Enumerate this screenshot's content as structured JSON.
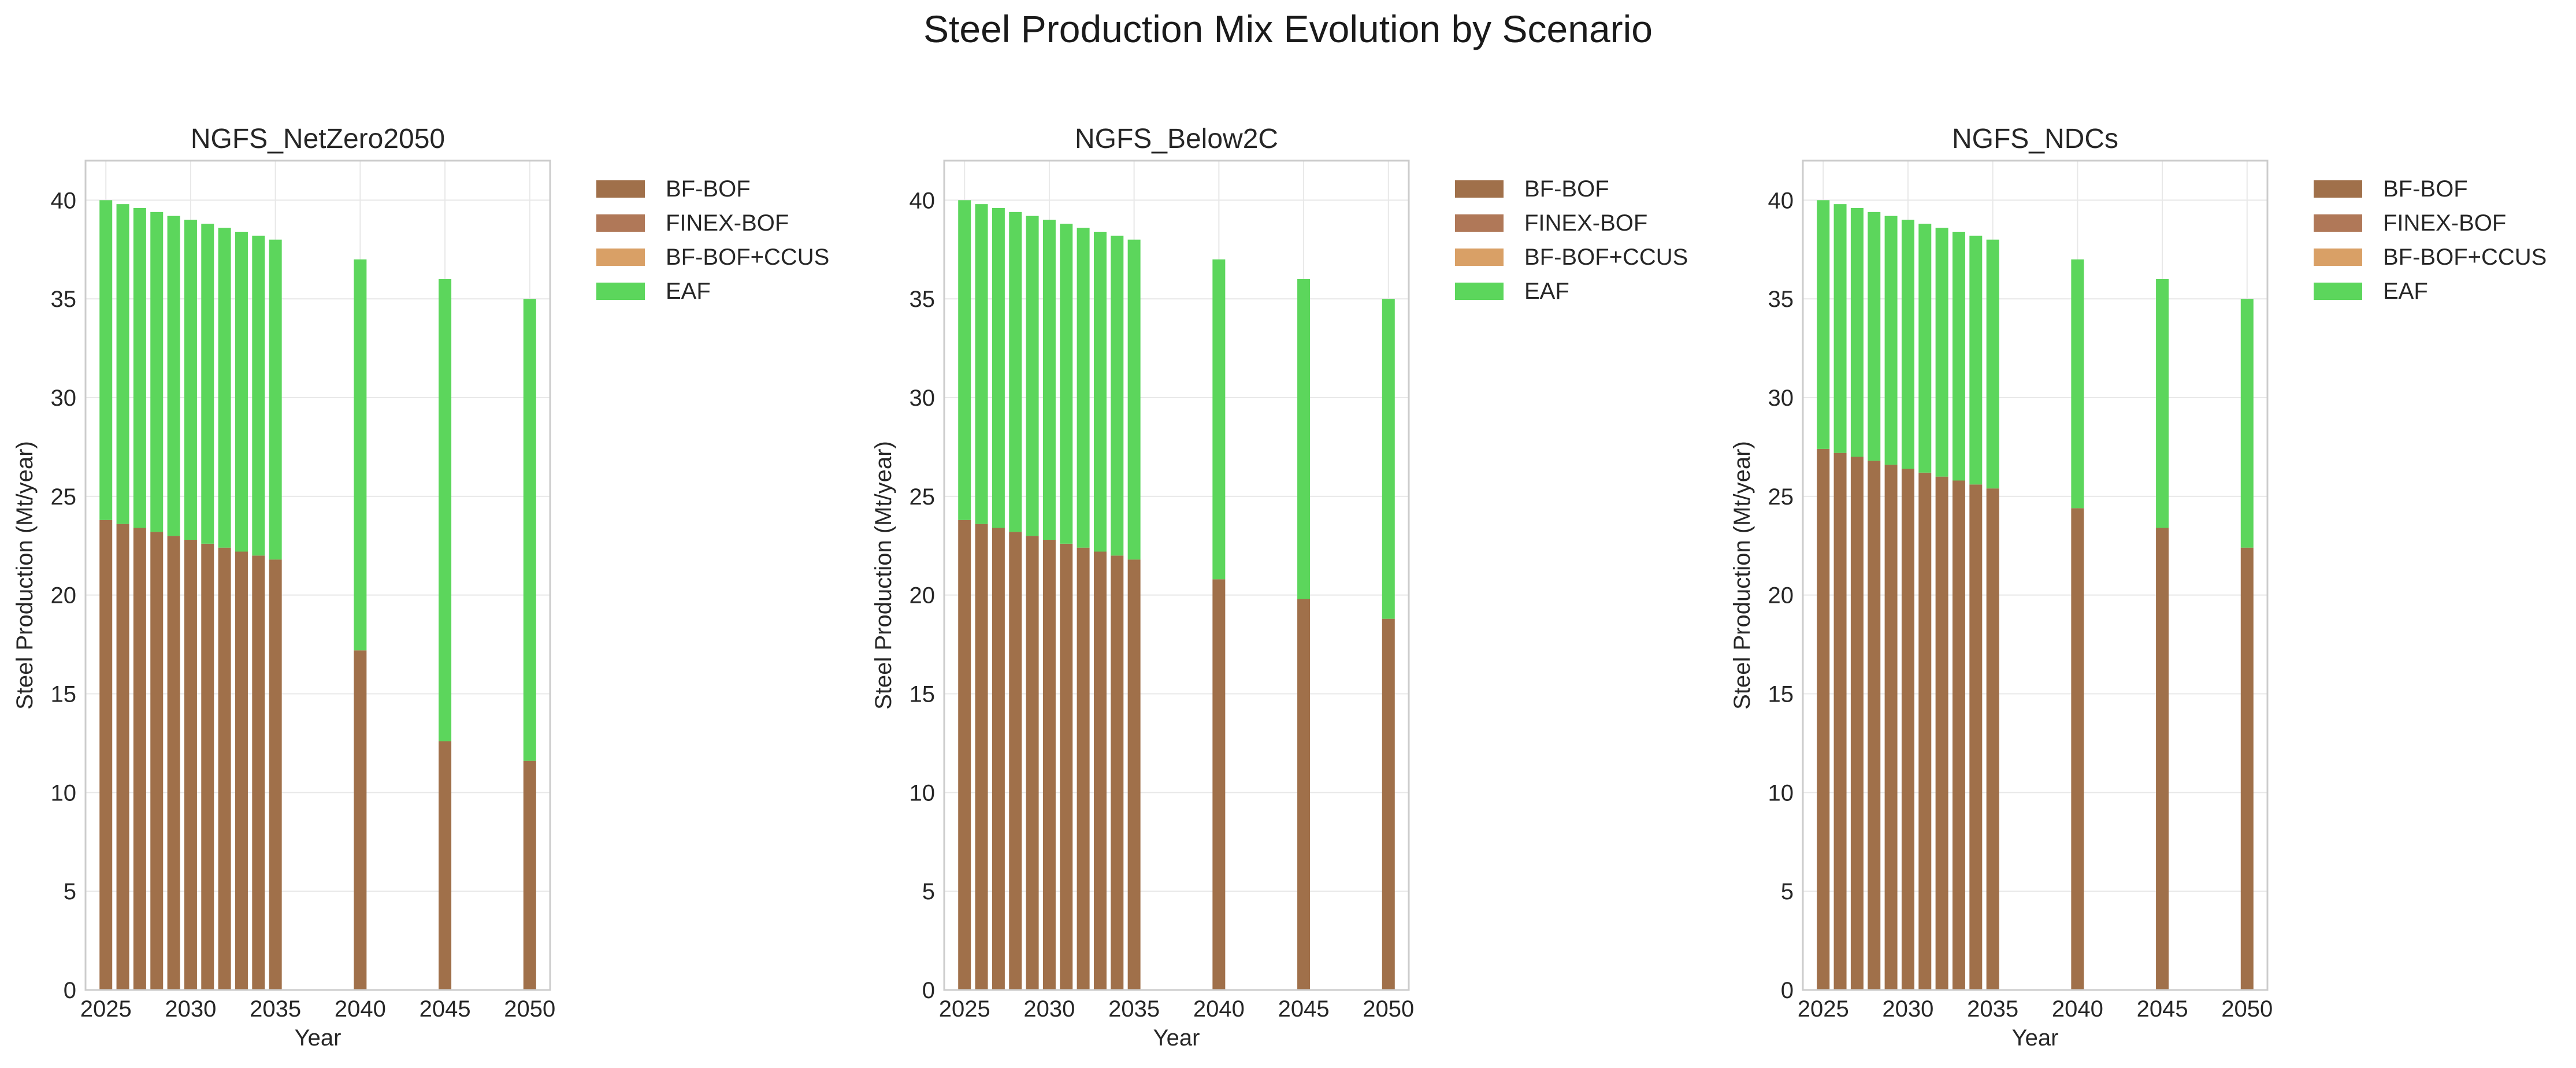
{
  "figure": {
    "suptitle": "Steel Production Mix Evolution by Scenario"
  },
  "colors": {
    "BF-BOF": "#a0704a",
    "FINEX-BOF": "#b07858",
    "BF-BOF+CCUS": "#d9a066",
    "EAF": "#5cd65c",
    "grid": "#e8e8e8",
    "spine": "#cccccc",
    "text": "#262626"
  },
  "chart_data": [
    {
      "type": "bar",
      "stacked": true,
      "title": "NGFS_NetZero2050",
      "xlabel": "Year",
      "ylabel": "Steel Production (Mt/year)",
      "xlim": [
        2023.8,
        2051.2
      ],
      "ylim": [
        0,
        42
      ],
      "xticks": [
        2025,
        2030,
        2035,
        2040,
        2045,
        2050
      ],
      "yticks": [
        0,
        5,
        10,
        15,
        20,
        25,
        30,
        35,
        40
      ],
      "grid": true,
      "legend": "outside-right",
      "x": [
        2025,
        2026,
        2027,
        2028,
        2029,
        2030,
        2031,
        2032,
        2033,
        2034,
        2035,
        2040,
        2045,
        2050
      ],
      "series": [
        {
          "name": "BF-BOF",
          "values": [
            23.8,
            23.6,
            23.4,
            23.2,
            23.0,
            22.8,
            22.6,
            22.4,
            22.2,
            22.0,
            21.8,
            17.2,
            12.6,
            11.6
          ]
        },
        {
          "name": "FINEX-BOF",
          "values": [
            0,
            0,
            0,
            0,
            0,
            0,
            0,
            0,
            0,
            0,
            0,
            0,
            0,
            0
          ]
        },
        {
          "name": "BF-BOF+CCUS",
          "values": [
            0,
            0,
            0,
            0,
            0,
            0,
            0,
            0,
            0,
            0,
            0,
            0,
            0,
            0
          ]
        },
        {
          "name": "EAF",
          "values": [
            16.2,
            16.2,
            16.2,
            16.2,
            16.2,
            16.2,
            16.2,
            16.2,
            16.2,
            16.2,
            16.2,
            19.8,
            23.4,
            23.4
          ]
        }
      ]
    },
    {
      "type": "bar",
      "stacked": true,
      "title": "NGFS_Below2C",
      "xlabel": "Year",
      "ylabel": "Steel Production (Mt/year)",
      "xlim": [
        2023.8,
        2051.2
      ],
      "ylim": [
        0,
        42
      ],
      "xticks": [
        2025,
        2030,
        2035,
        2040,
        2045,
        2050
      ],
      "yticks": [
        0,
        5,
        10,
        15,
        20,
        25,
        30,
        35,
        40
      ],
      "grid": true,
      "legend": "outside-right",
      "x": [
        2025,
        2026,
        2027,
        2028,
        2029,
        2030,
        2031,
        2032,
        2033,
        2034,
        2035,
        2040,
        2045,
        2050
      ],
      "series": [
        {
          "name": "BF-BOF",
          "values": [
            23.8,
            23.6,
            23.4,
            23.2,
            23.0,
            22.8,
            22.6,
            22.4,
            22.2,
            22.0,
            21.8,
            20.8,
            19.8,
            18.8
          ]
        },
        {
          "name": "FINEX-BOF",
          "values": [
            0,
            0,
            0,
            0,
            0,
            0,
            0,
            0,
            0,
            0,
            0,
            0,
            0,
            0
          ]
        },
        {
          "name": "BF-BOF+CCUS",
          "values": [
            0,
            0,
            0,
            0,
            0,
            0,
            0,
            0,
            0,
            0,
            0,
            0,
            0,
            0
          ]
        },
        {
          "name": "EAF",
          "values": [
            16.2,
            16.2,
            16.2,
            16.2,
            16.2,
            16.2,
            16.2,
            16.2,
            16.2,
            16.2,
            16.2,
            16.2,
            16.2,
            16.2
          ]
        }
      ]
    },
    {
      "type": "bar",
      "stacked": true,
      "title": "NGFS_NDCs",
      "xlabel": "Year",
      "ylabel": "Steel Production (Mt/year)",
      "xlim": [
        2023.8,
        2051.2
      ],
      "ylim": [
        0,
        42
      ],
      "xticks": [
        2025,
        2030,
        2035,
        2040,
        2045,
        2050
      ],
      "yticks": [
        0,
        5,
        10,
        15,
        20,
        25,
        30,
        35,
        40
      ],
      "grid": true,
      "legend": "outside-right",
      "x": [
        2025,
        2026,
        2027,
        2028,
        2029,
        2030,
        2031,
        2032,
        2033,
        2034,
        2035,
        2040,
        2045,
        2050
      ],
      "series": [
        {
          "name": "BF-BOF",
          "values": [
            27.4,
            27.2,
            27.0,
            26.8,
            26.6,
            26.4,
            26.2,
            26.0,
            25.8,
            25.6,
            25.4,
            24.4,
            23.4,
            22.4
          ]
        },
        {
          "name": "FINEX-BOF",
          "values": [
            0,
            0,
            0,
            0,
            0,
            0,
            0,
            0,
            0,
            0,
            0,
            0,
            0,
            0
          ]
        },
        {
          "name": "BF-BOF+CCUS",
          "values": [
            0,
            0,
            0,
            0,
            0,
            0,
            0,
            0,
            0,
            0,
            0,
            0,
            0,
            0
          ]
        },
        {
          "name": "EAF",
          "values": [
            12.6,
            12.6,
            12.6,
            12.6,
            12.6,
            12.6,
            12.6,
            12.6,
            12.6,
            12.6,
            12.6,
            12.6,
            12.6,
            12.6
          ]
        }
      ]
    }
  ]
}
